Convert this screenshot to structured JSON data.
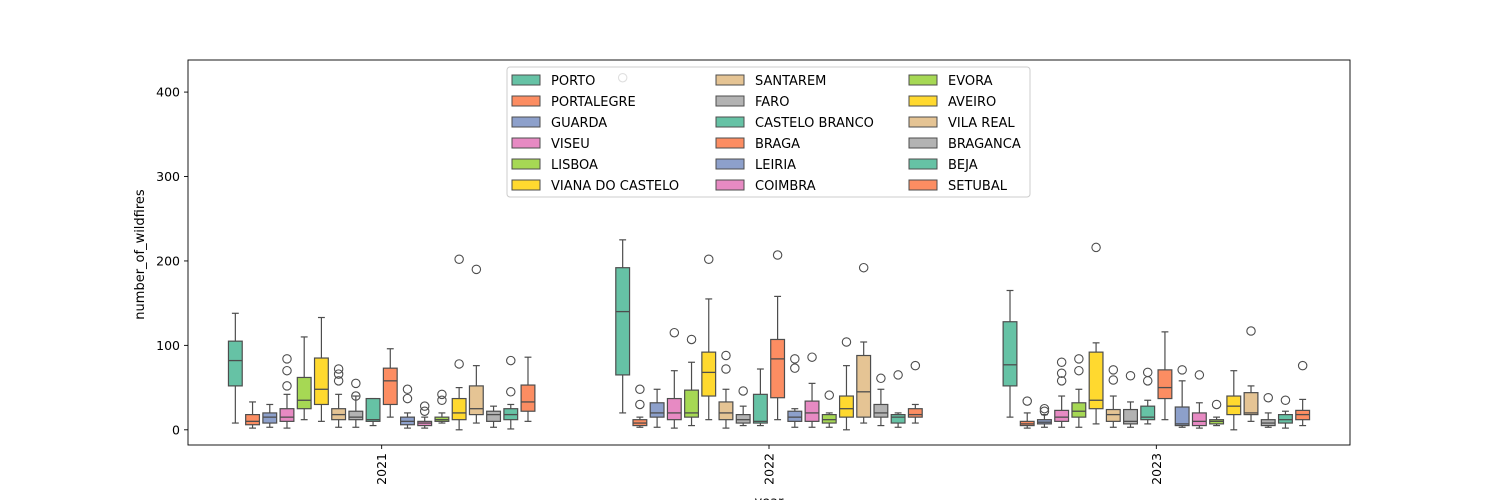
{
  "chart_data": {
    "type": "box",
    "xlabel": "year",
    "ylabel": "number_of_wildfires",
    "ylim": [
      -18,
      438
    ],
    "yticks": [
      0,
      100,
      200,
      300,
      400
    ],
    "categories": [
      "2021",
      "2022",
      "2023"
    ],
    "legend_placement": "upper-center",
    "grid": false,
    "series_names": [
      "PORTO",
      "PORTALEGRE",
      "GUARDA",
      "VISEU",
      "LISBOA",
      "VIANA DO CASTELO",
      "SANTAREM",
      "FARO",
      "CASTELO BRANCO",
      "BRAGA",
      "LEIRIA",
      "COIMBRA",
      "EVORA",
      "AVEIRO",
      "VILA REAL",
      "BRAGANCA",
      "BEJA",
      "SETUBAL"
    ],
    "palette": [
      "#66c2a5",
      "#fc8d62",
      "#8da0cb",
      "#e78ac3",
      "#a6d854",
      "#ffd92f",
      "#e5c494",
      "#b3b3b3"
    ],
    "boxes": {
      "2021": [
        [
          8,
          52,
          82,
          105,
          138,
          []
        ],
        [
          2,
          6,
          10,
          18,
          33,
          []
        ],
        [
          3,
          8,
          15,
          20,
          30,
          []
        ],
        [
          2,
          10,
          15,
          25,
          42,
          [
            52,
            70,
            84
          ]
        ],
        [
          12,
          25,
          35,
          62,
          110,
          []
        ],
        [
          10,
          30,
          48,
          85,
          133,
          []
        ],
        [
          3,
          12,
          18,
          25,
          42,
          [
            58,
            66,
            72
          ]
        ],
        [
          3,
          12,
          15,
          22,
          40,
          [
            40,
            55
          ]
        ],
        [
          5,
          10,
          12,
          37,
          37,
          []
        ],
        [
          15,
          30,
          58,
          73,
          96,
          []
        ],
        [
          2,
          6,
          10,
          15,
          20,
          [
            37,
            48
          ]
        ],
        [
          2,
          5,
          8,
          10,
          15,
          [
            22,
            28
          ]
        ],
        [
          8,
          10,
          12,
          15,
          20,
          [
            35,
            42
          ]
        ],
        [
          0,
          12,
          20,
          37,
          50,
          [
            78,
            202
          ]
        ],
        [
          8,
          18,
          25,
          52,
          76,
          [
            190
          ]
        ],
        [
          3,
          10,
          18,
          22,
          28,
          []
        ],
        [
          1,
          12,
          18,
          25,
          30,
          [
            45,
            82
          ]
        ],
        [
          10,
          22,
          33,
          53,
          86,
          []
        ]
      ],
      "2022": [
        [
          20,
          65,
          140,
          192,
          225,
          []
        ],
        [
          3,
          5,
          8,
          12,
          15,
          [
            30,
            48
          ]
        ],
        [
          3,
          15,
          20,
          32,
          48,
          []
        ],
        [
          2,
          12,
          20,
          37,
          70,
          [
            115
          ]
        ],
        [
          5,
          15,
          20,
          47,
          80,
          [
            107
          ]
        ],
        [
          12,
          40,
          68,
          92,
          155,
          [
            202
          ]
        ],
        [
          2,
          12,
          20,
          33,
          48,
          [
            72,
            88
          ]
        ],
        [
          5,
          8,
          12,
          18,
          28,
          [
            46
          ]
        ],
        [
          5,
          8,
          10,
          42,
          72,
          []
        ],
        [
          12,
          38,
          84,
          107,
          158,
          [
            207
          ]
        ],
        [
          3,
          10,
          15,
          22,
          25,
          [
            73,
            84
          ]
        ],
        [
          3,
          10,
          20,
          34,
          55,
          [
            86
          ]
        ],
        [
          3,
          8,
          12,
          18,
          20,
          [
            41
          ]
        ],
        [
          0,
          15,
          25,
          40,
          76,
          [
            104
          ]
        ],
        [
          8,
          15,
          45,
          88,
          104,
          [
            192
          ]
        ],
        [
          5,
          15,
          20,
          30,
          48,
          [
            61
          ]
        ],
        [
          3,
          8,
          15,
          18,
          20,
          [
            65
          ]
        ],
        [
          8,
          15,
          18,
          25,
          30,
          [
            76
          ]
        ]
      ],
      "2023": [
        [
          15,
          52,
          77,
          128,
          165,
          []
        ],
        [
          2,
          5,
          7,
          10,
          20,
          [
            34
          ]
        ],
        [
          3,
          7,
          9,
          12,
          18,
          [
            22,
            25
          ]
        ],
        [
          3,
          10,
          15,
          23,
          40,
          [
            58,
            67,
            80
          ]
        ],
        [
          3,
          15,
          22,
          32,
          48,
          [
            70,
            84
          ]
        ],
        [
          7,
          25,
          35,
          92,
          103,
          [
            216
          ]
        ],
        [
          3,
          10,
          18,
          24,
          40,
          [
            59,
            71
          ]
        ],
        [
          3,
          7,
          10,
          24,
          33,
          [
            64
          ]
        ],
        [
          7,
          12,
          15,
          28,
          35,
          [
            58,
            68
          ]
        ],
        [
          12,
          37,
          50,
          71,
          116,
          []
        ],
        [
          3,
          5,
          7,
          27,
          58,
          [
            71
          ]
        ],
        [
          2,
          5,
          10,
          20,
          32,
          [
            65
          ]
        ],
        [
          5,
          7,
          10,
          12,
          15,
          [
            30
          ]
        ],
        [
          0,
          18,
          28,
          40,
          70,
          []
        ],
        [
          10,
          18,
          20,
          44,
          52,
          [
            117
          ]
        ],
        [
          3,
          5,
          8,
          12,
          20,
          [
            38
          ]
        ],
        [
          2,
          8,
          12,
          18,
          22,
          [
            35
          ]
        ],
        [
          5,
          12,
          18,
          23,
          36,
          [
            76
          ]
        ]
      ]
    },
    "extra_outliers": [
      {
        "category": "2022",
        "series": "PORTO",
        "value": 417
      }
    ]
  }
}
